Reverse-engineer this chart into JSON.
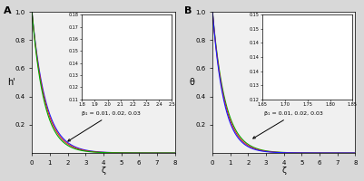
{
  "title_A": "A",
  "title_B": "B",
  "ylabel_A": "h'",
  "ylabel_B": "θ",
  "xlabel": "ζ",
  "xlim": [
    0,
    8
  ],
  "ylim": [
    0,
    1.0
  ],
  "yticks": [
    0.2,
    0.4,
    0.6,
    0.8,
    1.0
  ],
  "xticks": [
    0,
    1,
    2,
    3,
    4,
    5,
    6,
    7,
    8
  ],
  "colors_A": [
    "#1a1aff",
    "#dd2222",
    "#00aa00"
  ],
  "colors_B": [
    "#00aa00",
    "#dd2222",
    "#1a1aff"
  ],
  "annotation_text_A": "β₁ = 0.01, 0.02, 0.03",
  "annotation_text_B": "β₁ = 0.01, 0.02, 0.03",
  "inset_A": {
    "xlim": [
      1.8,
      2.5
    ],
    "ylim": [
      0.11,
      0.18
    ],
    "xticks": [
      1.8,
      1.9,
      2.0,
      2.1,
      2.2,
      2.3,
      2.4,
      2.5
    ],
    "yticks": [
      0.11,
      0.12,
      0.13,
      0.14,
      0.15,
      0.16,
      0.17,
      0.18
    ],
    "bounds": [
      0.35,
      0.38,
      0.63,
      0.6
    ]
  },
  "inset_B": {
    "xlim": [
      1.65,
      1.85
    ],
    "ylim": [
      0.125,
      0.155
    ],
    "xticks": [
      1.65,
      1.7,
      1.75,
      1.8,
      1.85
    ],
    "yticks": [
      0.125,
      0.13,
      0.135,
      0.14,
      0.145,
      0.15,
      0.155
    ],
    "bounds": [
      0.35,
      0.38,
      0.63,
      0.6
    ]
  },
  "decay_rates_A": [
    1.3,
    1.37,
    1.46
  ],
  "decay_rates_B": [
    1.4,
    1.48,
    1.56
  ],
  "bg_color": "#d8d8d8",
  "ax_bg": "#f0f0f0"
}
